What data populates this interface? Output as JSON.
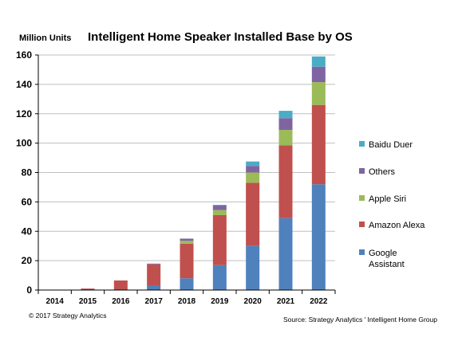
{
  "chart_data": {
    "type": "bar",
    "stacked": true,
    "title": "Intelligent Home Speaker Installed Base by OS",
    "ylabel": "Million Units",
    "xlabel": "",
    "ylim": [
      0,
      160
    ],
    "yticks": [
      0,
      20,
      40,
      60,
      80,
      100,
      120,
      140,
      160
    ],
    "grid": false,
    "legend_position": "right",
    "categories": [
      "2014",
      "2015",
      "2016",
      "2017",
      "2018",
      "2019",
      "2020",
      "2021",
      "2022"
    ],
    "series": [
      {
        "name": "Google Assistant",
        "color": "#4f81bd",
        "values": [
          0,
          0,
          0,
          3,
          8,
          17,
          30,
          49,
          72
        ]
      },
      {
        "name": "Amazon Alexa",
        "color": "#c0504d",
        "values": [
          0,
          1,
          6.5,
          14.5,
          23.5,
          34,
          43,
          49.5,
          54
        ]
      },
      {
        "name": "Apple Siri",
        "color": "#9bbb59",
        "values": [
          0,
          0,
          0,
          0,
          2,
          3.5,
          7,
          10.5,
          15.5
        ]
      },
      {
        "name": "Others",
        "color": "#8064a2",
        "values": [
          0,
          0,
          0,
          0.5,
          1.5,
          3,
          4.5,
          8,
          10.5
        ]
      },
      {
        "name": "Baidu Duer",
        "color": "#4bacc6",
        "values": [
          0,
          0,
          0,
          0,
          0,
          0.5,
          3,
          5,
          7
        ]
      }
    ],
    "legend_order": [
      "Baidu Duer",
      "Others",
      "Apple Siri",
      "Amazon Alexa",
      "Google Assistant"
    ]
  },
  "footer": {
    "copyright": "© 2017 Strategy Analytics",
    "source": "Source: Strategy Analytics ' Intelligent Home Group"
  }
}
